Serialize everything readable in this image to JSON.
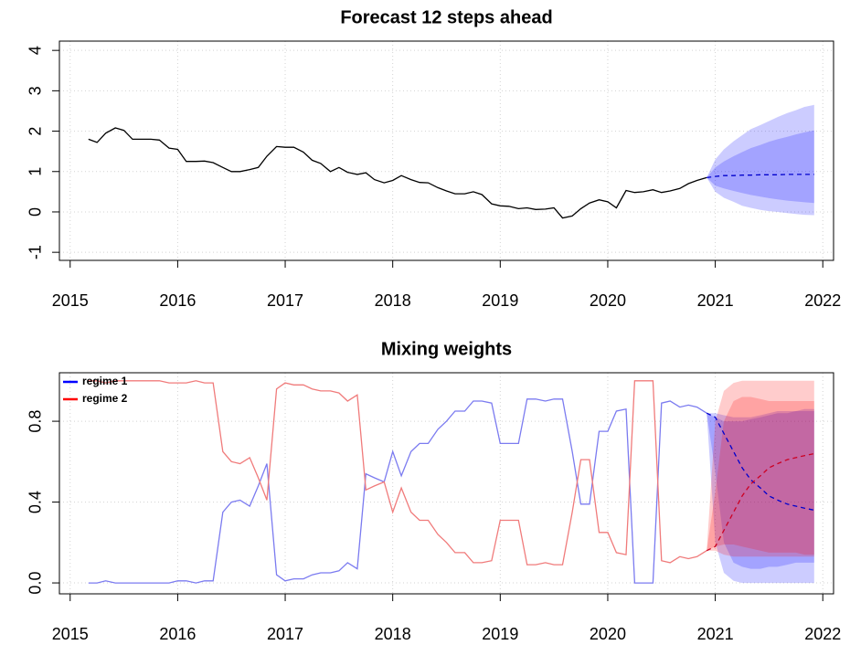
{
  "chart_data": [
    {
      "type": "line",
      "title": "Forecast 12 steps ahead",
      "xlim": [
        2014.9,
        2022.1
      ],
      "xticks": [
        2015,
        2016,
        2017,
        2018,
        2019,
        2020,
        2021,
        2022
      ],
      "ylim": [
        -1.2,
        4.23
      ],
      "yticks": [
        -1,
        0,
        1,
        2,
        3,
        4
      ],
      "grid": true,
      "x": [
        2015.17,
        2015.25,
        2015.33,
        2015.42,
        2015.5,
        2015.58,
        2015.67,
        2015.75,
        2015.83,
        2015.92,
        2016.0,
        2016.08,
        2016.17,
        2016.25,
        2016.33,
        2016.42,
        2016.5,
        2016.58,
        2016.67,
        2016.75,
        2016.83,
        2016.92,
        2017.0,
        2017.08,
        2017.17,
        2017.25,
        2017.33,
        2017.42,
        2017.5,
        2017.58,
        2017.67,
        2017.75,
        2017.83,
        2017.92,
        2018.0,
        2018.08,
        2018.17,
        2018.25,
        2018.33,
        2018.42,
        2018.5,
        2018.58,
        2018.67,
        2018.75,
        2018.83,
        2018.92,
        2019.0,
        2019.08,
        2019.17,
        2019.25,
        2019.33,
        2019.42,
        2019.5,
        2019.58,
        2019.67,
        2019.75,
        2019.83,
        2019.92,
        2020.0,
        2020.08,
        2020.17,
        2020.25,
        2020.33,
        2020.42,
        2020.5,
        2020.58,
        2020.67,
        2020.75,
        2020.83,
        2020.92
      ],
      "series": [
        {
          "color": "#000000",
          "values": [
            1.8,
            1.72,
            1.95,
            2.08,
            2.02,
            1.8,
            1.8,
            1.8,
            1.78,
            1.58,
            1.55,
            1.25,
            1.25,
            1.26,
            1.22,
            1.1,
            1.0,
            1.0,
            1.05,
            1.1,
            1.38,
            1.62,
            1.6,
            1.6,
            1.48,
            1.28,
            1.2,
            1.0,
            1.1,
            0.98,
            0.93,
            0.97,
            0.8,
            0.72,
            0.78,
            0.9,
            0.8,
            0.73,
            0.72,
            0.6,
            0.52,
            0.45,
            0.45,
            0.5,
            0.43,
            0.2,
            0.15,
            0.14,
            0.08,
            0.1,
            0.06,
            0.07,
            0.1,
            -0.15,
            -0.1,
            0.08,
            0.22,
            0.3,
            0.25,
            0.1,
            0.53,
            0.48,
            0.5,
            0.55,
            0.48,
            0.52,
            0.58,
            0.7,
            0.78,
            0.85
          ]
        }
      ],
      "forecast": {
        "x": [
          2020.92,
          2021.0,
          2021.08,
          2021.17,
          2021.25,
          2021.33,
          2021.42,
          2021.5,
          2021.58,
          2021.67,
          2021.75,
          2021.83,
          2021.92
        ],
        "series": [
          {
            "color": "#0000cc",
            "values": [
              0.85,
              0.88,
              0.9,
              0.9,
              0.91,
              0.91,
              0.92,
              0.92,
              0.92,
              0.93,
              0.93,
              0.93,
              0.93
            ],
            "bands": [
              {
                "color": "rgba(0,0,255,0.2)",
                "lower": [
                  0.85,
                  0.5,
                  0.35,
                  0.25,
                  0.15,
                  0.1,
                  0.05,
                  0.02,
                  0,
                  -0.03,
                  -0.05,
                  -0.07,
                  -0.08
                ],
                "upper": [
                  0.85,
                  1.3,
                  1.55,
                  1.75,
                  1.9,
                  2.05,
                  2.15,
                  2.25,
                  2.35,
                  2.45,
                  2.52,
                  2.6,
                  2.65
                ]
              },
              {
                "color": "rgba(0,0,255,0.2)",
                "lower": [
                  0.85,
                  0.65,
                  0.58,
                  0.52,
                  0.47,
                  0.42,
                  0.38,
                  0.34,
                  0.31,
                  0.28,
                  0.26,
                  0.24,
                  0.22
                ],
                "upper": [
                  0.85,
                  1.1,
                  1.25,
                  1.38,
                  1.48,
                  1.58,
                  1.66,
                  1.74,
                  1.8,
                  1.86,
                  1.92,
                  1.97,
                  2.02
                ]
              }
            ]
          }
        ]
      }
    },
    {
      "type": "line",
      "title": "Mixing weights",
      "xlim": [
        2014.9,
        2022.1
      ],
      "xticks": [
        2015,
        2016,
        2017,
        2018,
        2019,
        2020,
        2021,
        2022
      ],
      "ylim": [
        -0.054,
        1.04
      ],
      "yticks": [
        {
          "value": 0,
          "label": "0.0"
        },
        0.4,
        0.8
      ],
      "grid": true,
      "legend": "topleft",
      "x": [
        2015.17,
        2015.25,
        2015.33,
        2015.42,
        2015.5,
        2015.58,
        2015.67,
        2015.75,
        2015.83,
        2015.92,
        2016.0,
        2016.08,
        2016.17,
        2016.25,
        2016.33,
        2016.42,
        2016.5,
        2016.58,
        2016.67,
        2016.75,
        2016.83,
        2016.92,
        2017.0,
        2017.08,
        2017.17,
        2017.25,
        2017.33,
        2017.42,
        2017.5,
        2017.58,
        2017.67,
        2017.75,
        2017.83,
        2017.92,
        2018.0,
        2018.08,
        2018.17,
        2018.25,
        2018.33,
        2018.42,
        2018.5,
        2018.58,
        2018.67,
        2018.75,
        2018.83,
        2018.92,
        2019.0,
        2019.08,
        2019.17,
        2019.25,
        2019.33,
        2019.42,
        2019.5,
        2019.58,
        2019.67,
        2019.75,
        2019.83,
        2019.92,
        2020.0,
        2020.08,
        2020.17,
        2020.25,
        2020.33,
        2020.42,
        2020.5,
        2020.58,
        2020.67,
        2020.75,
        2020.83,
        2020.92
      ],
      "series": [
        {
          "name": "regime 1",
          "color": "#7b7bf0",
          "legend_color": "#0000ff",
          "values": [
            0,
            0,
            0.01,
            0,
            0,
            0,
            0,
            0,
            0,
            0,
            0.01,
            0.01,
            0,
            0.01,
            0.01,
            0.35,
            0.4,
            0.41,
            0.38,
            0.48,
            0.59,
            0.04,
            0.01,
            0.02,
            0.02,
            0.04,
            0.05,
            0.05,
            0.06,
            0.1,
            0.07,
            0.54,
            0.52,
            0.5,
            0.65,
            0.53,
            0.65,
            0.69,
            0.69,
            0.76,
            0.8,
            0.85,
            0.85,
            0.9,
            0.9,
            0.89,
            0.69,
            0.69,
            0.69,
            0.91,
            0.91,
            0.9,
            0.91,
            0.91,
            0.65,
            0.39,
            0.39,
            0.75,
            0.75,
            0.85,
            0.86,
            0,
            0,
            0,
            0.89,
            0.9,
            0.87,
            0.88,
            0.87,
            0.84
          ]
        },
        {
          "name": "regime 2",
          "color": "#f07b7b",
          "legend_color": "#ff0000",
          "values": [
            1,
            1,
            0.99,
            1,
            1,
            1,
            1,
            1,
            1,
            0.99,
            0.99,
            0.99,
            1,
            0.99,
            0.99,
            0.65,
            0.6,
            0.59,
            0.62,
            0.52,
            0.41,
            0.96,
            0.99,
            0.98,
            0.98,
            0.96,
            0.95,
            0.95,
            0.94,
            0.9,
            0.93,
            0.46,
            0.48,
            0.5,
            0.35,
            0.47,
            0.35,
            0.31,
            0.31,
            0.24,
            0.2,
            0.15,
            0.15,
            0.1,
            0.1,
            0.11,
            0.31,
            0.31,
            0.31,
            0.09,
            0.09,
            0.1,
            0.09,
            0.09,
            0.35,
            0.61,
            0.61,
            0.25,
            0.25,
            0.15,
            0.14,
            1,
            1,
            1,
            0.11,
            0.1,
            0.13,
            0.12,
            0.13,
            0.16
          ]
        }
      ],
      "forecast": {
        "x": [
          2020.92,
          2021.0,
          2021.08,
          2021.17,
          2021.25,
          2021.33,
          2021.42,
          2021.5,
          2021.58,
          2021.67,
          2021.75,
          2021.83,
          2021.92
        ],
        "series": [
          {
            "color": "#0000cc",
            "values": [
              0.84,
              0.82,
              0.74,
              0.65,
              0.57,
              0.51,
              0.47,
              0.43,
              0.41,
              0.39,
              0.38,
              0.37,
              0.36
            ],
            "bands": [
              {
                "color": "rgba(0,0,255,0.2)",
                "lower": [
                  0.84,
                  0.2,
                  0.05,
                  0.01,
                  0,
                  0,
                  0,
                  0,
                  0,
                  0,
                  0,
                  0,
                  0
                ],
                "upper": [
                  0.84,
                  0.84,
                  0.83,
                  0.82,
                  0.82,
                  0.82,
                  0.83,
                  0.84,
                  0.85,
                  0.85,
                  0.85,
                  0.86,
                  0.86
                ]
              },
              {
                "color": "rgba(0,0,255,0.2)",
                "lower": [
                  0.84,
                  0.55,
                  0.2,
                  0.1,
                  0.08,
                  0.07,
                  0.07,
                  0.08,
                  0.08,
                  0.09,
                  0.1,
                  0.1,
                  0.1
                ],
                "upper": [
                  0.84,
                  0.82,
                  0.8,
                  0.8,
                  0.8,
                  0.81,
                  0.82,
                  0.83,
                  0.84,
                  0.84,
                  0.85,
                  0.85,
                  0.85
                ]
              }
            ]
          },
          {
            "color": "#cc0022",
            "values": [
              0.16,
              0.18,
              0.26,
              0.35,
              0.43,
              0.49,
              0.53,
              0.57,
              0.59,
              0.61,
              0.62,
              0.63,
              0.64
            ],
            "bands": [
              {
                "color": "rgba(255,0,0,0.2)",
                "lower": [
                  0.16,
                  0.16,
                  0.14,
                  0.13,
                  0.13,
                  0.13,
                  0.13,
                  0.13,
                  0.13,
                  0.13,
                  0.13,
                  0.13,
                  0.13
                ],
                "upper": [
                  0.16,
                  0.8,
                  0.95,
                  0.99,
                  1,
                  1,
                  1,
                  1,
                  1,
                  1,
                  1,
                  1,
                  1
                ]
              },
              {
                "color": "rgba(255,0,0,0.2)",
                "lower": [
                  0.16,
                  0.18,
                  0.19,
                  0.19,
                  0.18,
                  0.17,
                  0.16,
                  0.15,
                  0.15,
                  0.15,
                  0.15,
                  0.14,
                  0.14
                ],
                "upper": [
                  0.16,
                  0.45,
                  0.8,
                  0.9,
                  0.92,
                  0.92,
                  0.91,
                  0.9,
                  0.9,
                  0.9,
                  0.9,
                  0.9,
                  0.9
                ]
              }
            ]
          }
        ]
      }
    }
  ]
}
